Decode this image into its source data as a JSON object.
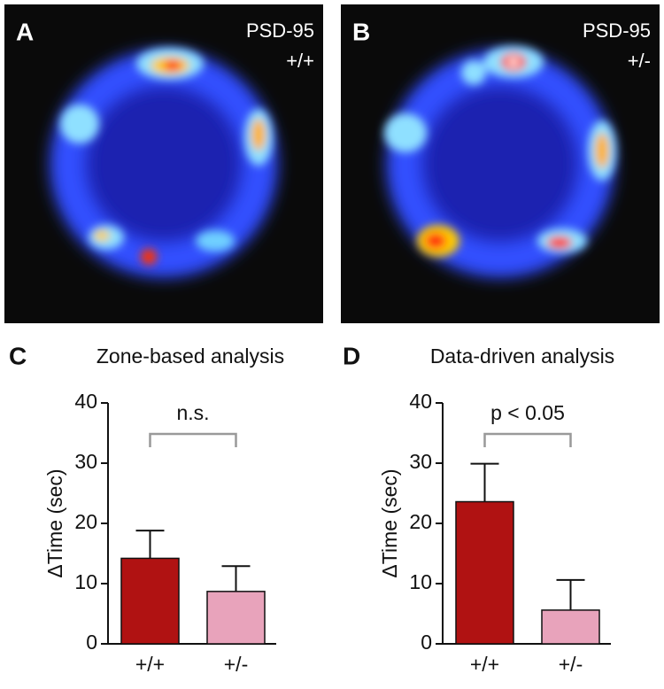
{
  "heatmaps": [
    {
      "label": "A",
      "title": "PSD-95",
      "genotype": "+/+"
    },
    {
      "label": "B",
      "title": "PSD-95",
      "genotype": "+/-"
    }
  ],
  "chart_data": [
    {
      "type": "bar",
      "label": "C",
      "title": "Zone-based analysis",
      "ylabel": "ΔTime (sec)",
      "categories": [
        "+/+",
        "+/-"
      ],
      "values": [
        14.2,
        8.7
      ],
      "errors": [
        4.6,
        4.2
      ],
      "colors": [
        "#b01212",
        "#e8a3bb"
      ],
      "ylim": [
        0,
        40
      ],
      "yticks": [
        0,
        10,
        20,
        30,
        40
      ],
      "annotation": "n.s."
    },
    {
      "type": "bar",
      "label": "D",
      "title": "Data-driven analysis",
      "ylabel": "ΔTime (sec)",
      "categories": [
        "+/+",
        "+/-"
      ],
      "values": [
        23.6,
        5.6
      ],
      "errors": [
        6.3,
        5.0
      ],
      "colors": [
        "#b01212",
        "#e8a3bb"
      ],
      "ylim": [
        0,
        40
      ],
      "yticks": [
        0,
        10,
        20,
        30,
        40
      ],
      "annotation": "p < 0.05"
    }
  ]
}
